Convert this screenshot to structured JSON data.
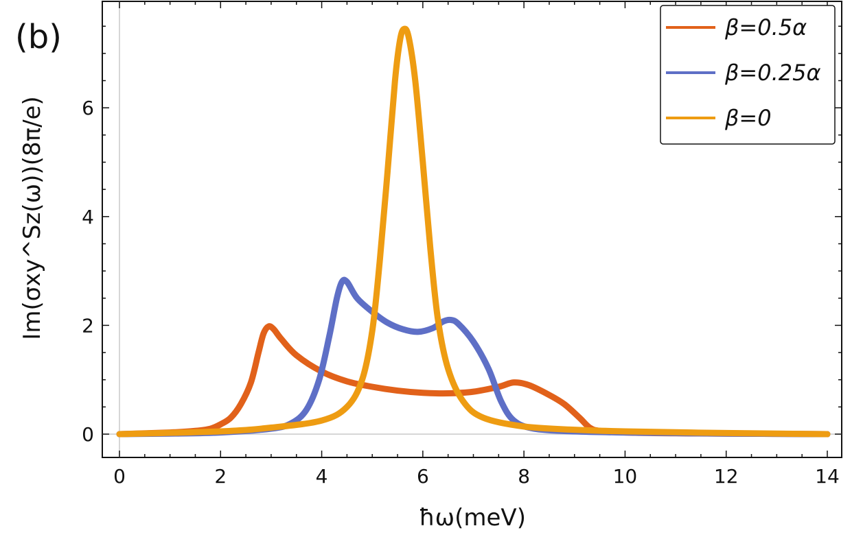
{
  "chart_data": {
    "type": "line",
    "panel_label": "(b)",
    "xlabel": "ħω(meV)",
    "ylabel": "Im(σxy^Sz(ω))(8π/e)",
    "xlim": [
      0,
      14
    ],
    "ylim": [
      -0.45,
      7.7
    ],
    "xticks": [
      0,
      2,
      4,
      6,
      8,
      10,
      12,
      14
    ],
    "yticks": [
      0,
      2,
      4,
      6
    ],
    "legend_position": "top-right",
    "series": [
      {
        "name": "β=0.5α",
        "color": "#E1611A",
        "points": [
          [
            0,
            0
          ],
          [
            1,
            0.03
          ],
          [
            1.5,
            0.06
          ],
          [
            1.8,
            0.1
          ],
          [
            2.0,
            0.18
          ],
          [
            2.2,
            0.3
          ],
          [
            2.4,
            0.55
          ],
          [
            2.6,
            0.95
          ],
          [
            2.75,
            1.5
          ],
          [
            2.85,
            1.85
          ],
          [
            2.95,
            1.98
          ],
          [
            3.05,
            1.93
          ],
          [
            3.2,
            1.75
          ],
          [
            3.5,
            1.45
          ],
          [
            4,
            1.15
          ],
          [
            4.5,
            0.97
          ],
          [
            5,
            0.87
          ],
          [
            5.5,
            0.8
          ],
          [
            6,
            0.76
          ],
          [
            6.5,
            0.75
          ],
          [
            7,
            0.78
          ],
          [
            7.5,
            0.87
          ],
          [
            7.8,
            0.95
          ],
          [
            8.1,
            0.9
          ],
          [
            8.5,
            0.72
          ],
          [
            8.8,
            0.55
          ],
          [
            9.1,
            0.3
          ],
          [
            9.3,
            0.12
          ],
          [
            9.5,
            0.06
          ],
          [
            10,
            0.03
          ],
          [
            11,
            0.015
          ],
          [
            12,
            0.01
          ],
          [
            14,
            0.0
          ]
        ]
      },
      {
        "name": "β=0.25α",
        "color": "#5E6FC6",
        "points": [
          [
            0,
            0
          ],
          [
            1,
            0.01
          ],
          [
            2,
            0.03
          ],
          [
            3,
            0.1
          ],
          [
            3.4,
            0.2
          ],
          [
            3.7,
            0.45
          ],
          [
            3.95,
            1.0
          ],
          [
            4.15,
            1.8
          ],
          [
            4.3,
            2.5
          ],
          [
            4.4,
            2.8
          ],
          [
            4.5,
            2.8
          ],
          [
            4.7,
            2.5
          ],
          [
            5,
            2.25
          ],
          [
            5.3,
            2.05
          ],
          [
            5.6,
            1.93
          ],
          [
            5.9,
            1.88
          ],
          [
            6.2,
            1.95
          ],
          [
            6.4,
            2.07
          ],
          [
            6.55,
            2.1
          ],
          [
            6.7,
            2.03
          ],
          [
            7,
            1.7
          ],
          [
            7.3,
            1.2
          ],
          [
            7.55,
            0.6
          ],
          [
            7.8,
            0.25
          ],
          [
            8.2,
            0.1
          ],
          [
            9,
            0.05
          ],
          [
            10,
            0.03
          ],
          [
            12,
            0.01
          ],
          [
            14,
            0.0
          ]
        ]
      },
      {
        "name": "β=0",
        "color": "#EE9C12",
        "points": [
          [
            0,
            0
          ],
          [
            2,
            0.05
          ],
          [
            3,
            0.12
          ],
          [
            4,
            0.25
          ],
          [
            4.5,
            0.5
          ],
          [
            4.8,
            1.0
          ],
          [
            5.0,
            1.9
          ],
          [
            5.15,
            3.2
          ],
          [
            5.3,
            4.8
          ],
          [
            5.45,
            6.5
          ],
          [
            5.55,
            7.25
          ],
          [
            5.63,
            7.45
          ],
          [
            5.72,
            7.3
          ],
          [
            5.85,
            6.5
          ],
          [
            6.0,
            5.0
          ],
          [
            6.15,
            3.4
          ],
          [
            6.3,
            2.1
          ],
          [
            6.5,
            1.2
          ],
          [
            6.8,
            0.6
          ],
          [
            7.2,
            0.3
          ],
          [
            8,
            0.14
          ],
          [
            9,
            0.08
          ],
          [
            10,
            0.05
          ],
          [
            12,
            0.02
          ],
          [
            14,
            0.0
          ]
        ]
      }
    ]
  }
}
